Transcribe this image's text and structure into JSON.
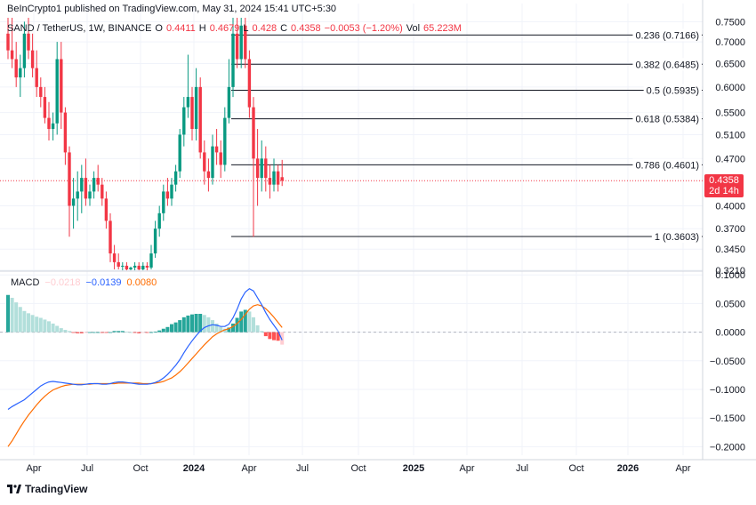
{
  "header": {
    "published": "BeInCrypto1 published on TradingView.com, May 31, 2024 15:41 UTC+5:30",
    "symbol": "SAND / TetherUS, 1W, BINANCE",
    "o_label": "O",
    "o_val": "0.4411",
    "h_label": "H",
    "h_val": "0.4679",
    "l_label": "L",
    "l_val": "0.428",
    "c_label": "C",
    "c_val": "0.4358",
    "change": "−0.0053 (−1.20%)",
    "vol_label": "Vol",
    "vol_val": "65.223M"
  },
  "macd_header": {
    "label": "MACD",
    "hist": "−0.0218",
    "macd": "−0.0139",
    "signal": "0.0080"
  },
  "price_tag": {
    "price": "0.4358",
    "countdown": "2d 14h"
  },
  "footer": {
    "brand": "TradingView"
  },
  "colors": {
    "up": "#089981",
    "down": "#f23645",
    "macd": "#2962ff",
    "signal": "#ff6d00",
    "hist_pos_strong": "#26a69a",
    "hist_pos_weak": "#b2dfdb",
    "hist_neg_strong": "#ff5252",
    "hist_neg_weak": "#ffcdd2"
  },
  "chart_data": {
    "type": "candlestick",
    "price_axis": {
      "ticks": [
        "0.7500",
        "0.7000",
        "0.6500",
        "0.6000",
        "0.5500",
        "0.5100",
        "0.4700",
        "0.4000",
        "0.3700",
        "0.3450",
        "0.3210"
      ],
      "min": 0.321,
      "max": 0.76,
      "scale": "log"
    },
    "time_axis": {
      "labels": [
        "Apr",
        "Jul",
        "Oct",
        "2024",
        "Apr",
        "Jul",
        "Oct",
        "2025",
        "Apr",
        "Jul",
        "Oct",
        "2026",
        "Apr"
      ],
      "bold": [
        "2024",
        "2025",
        "2026"
      ]
    },
    "fibonacci": [
      {
        "label": "0.236 (0.7166)",
        "price": 0.7166
      },
      {
        "label": "0.382 (0.6485)",
        "price": 0.6485
      },
      {
        "label": "0.5 (0.5935)",
        "price": 0.5935
      },
      {
        "label": "0.618 (0.5384)",
        "price": 0.5384
      },
      {
        "label": "0.786 (0.4601)",
        "price": 0.4601
      },
      {
        "label": "1 (0.3603)",
        "price": 0.3603
      }
    ],
    "last_price": 0.4358,
    "candles": [
      [
        0.72,
        0.76,
        0.66,
        0.68
      ],
      [
        0.68,
        0.76,
        0.64,
        0.66
      ],
      [
        0.66,
        0.7,
        0.6,
        0.62
      ],
      [
        0.62,
        0.67,
        0.58,
        0.64
      ],
      [
        0.64,
        0.75,
        0.62,
        0.72
      ],
      [
        0.72,
        0.76,
        0.66,
        0.68
      ],
      [
        0.68,
        0.72,
        0.62,
        0.64
      ],
      [
        0.64,
        0.68,
        0.58,
        0.6
      ],
      [
        0.6,
        0.62,
        0.56,
        0.58
      ],
      [
        0.58,
        0.6,
        0.53,
        0.54
      ],
      [
        0.54,
        0.57,
        0.5,
        0.52
      ],
      [
        0.52,
        0.55,
        0.5,
        0.53
      ],
      [
        0.53,
        0.7,
        0.51,
        0.66
      ],
      [
        0.66,
        0.7,
        0.52,
        0.55
      ],
      [
        0.55,
        0.56,
        0.46,
        0.48
      ],
      [
        0.48,
        0.49,
        0.36,
        0.4
      ],
      [
        0.4,
        0.44,
        0.37,
        0.41
      ],
      [
        0.41,
        0.45,
        0.38,
        0.42
      ],
      [
        0.42,
        0.46,
        0.39,
        0.44
      ],
      [
        0.44,
        0.47,
        0.4,
        0.41
      ],
      [
        0.41,
        0.43,
        0.4,
        0.42
      ],
      [
        0.42,
        0.45,
        0.41,
        0.44
      ],
      [
        0.44,
        0.46,
        0.42,
        0.43
      ],
      [
        0.43,
        0.44,
        0.4,
        0.41
      ],
      [
        0.41,
        0.42,
        0.37,
        0.38
      ],
      [
        0.38,
        0.39,
        0.33,
        0.34
      ],
      [
        0.34,
        0.35,
        0.322,
        0.33
      ],
      [
        0.33,
        0.34,
        0.322,
        0.325
      ],
      [
        0.325,
        0.33,
        0.321,
        0.326
      ],
      [
        0.326,
        0.33,
        0.321,
        0.322
      ],
      [
        0.322,
        0.325,
        0.321,
        0.324
      ],
      [
        0.324,
        0.33,
        0.321,
        0.326
      ],
      [
        0.326,
        0.33,
        0.321,
        0.322
      ],
      [
        0.322,
        0.33,
        0.321,
        0.326
      ],
      [
        0.326,
        0.33,
        0.321,
        0.324
      ],
      [
        0.324,
        0.35,
        0.322,
        0.34
      ],
      [
        0.34,
        0.38,
        0.335,
        0.37
      ],
      [
        0.37,
        0.4,
        0.36,
        0.39
      ],
      [
        0.39,
        0.43,
        0.38,
        0.42
      ],
      [
        0.42,
        0.44,
        0.4,
        0.41
      ],
      [
        0.41,
        0.44,
        0.4,
        0.43
      ],
      [
        0.43,
        0.46,
        0.42,
        0.45
      ],
      [
        0.45,
        0.52,
        0.44,
        0.51
      ],
      [
        0.51,
        0.58,
        0.49,
        0.56
      ],
      [
        0.56,
        0.67,
        0.54,
        0.58
      ],
      [
        0.58,
        0.6,
        0.5,
        0.52
      ],
      [
        0.52,
        0.64,
        0.5,
        0.6
      ],
      [
        0.6,
        0.62,
        0.47,
        0.48
      ],
      [
        0.48,
        0.5,
        0.43,
        0.45
      ],
      [
        0.45,
        0.47,
        0.42,
        0.44
      ],
      [
        0.44,
        0.51,
        0.43,
        0.49
      ],
      [
        0.49,
        0.52,
        0.46,
        0.48
      ],
      [
        0.48,
        0.5,
        0.44,
        0.46
      ],
      [
        0.46,
        0.56,
        0.45,
        0.54
      ],
      [
        0.54,
        0.66,
        0.53,
        0.6
      ],
      [
        0.6,
        0.76,
        0.58,
        0.72
      ],
      [
        0.72,
        0.76,
        0.64,
        0.66
      ],
      [
        0.66,
        0.76,
        0.64,
        0.74
      ],
      [
        0.74,
        0.76,
        0.64,
        0.66
      ],
      [
        0.66,
        0.68,
        0.54,
        0.56
      ],
      [
        0.56,
        0.58,
        0.36,
        0.47
      ],
      [
        0.47,
        0.52,
        0.4,
        0.44
      ],
      [
        0.44,
        0.5,
        0.42,
        0.47
      ],
      [
        0.47,
        0.49,
        0.42,
        0.44
      ],
      [
        0.44,
        0.46,
        0.41,
        0.43
      ],
      [
        0.43,
        0.47,
        0.42,
        0.45
      ],
      [
        0.45,
        0.46,
        0.42,
        0.43
      ],
      [
        0.4411,
        0.4679,
        0.428,
        0.4358
      ]
    ],
    "macd_axis": {
      "ticks": [
        "0.1000",
        "0.0500",
        "0.0000",
        "−0.0500",
        "−0.1000",
        "−0.1500",
        "−0.2000"
      ],
      "min": -0.215,
      "max": 0.105
    },
    "macd_line": [
      -0.135,
      -0.13,
      -0.126,
      -0.122,
      -0.118,
      -0.112,
      -0.106,
      -0.1,
      -0.094,
      -0.09,
      -0.087,
      -0.086,
      -0.087,
      -0.088,
      -0.089,
      -0.09,
      -0.091,
      -0.092,
      -0.092,
      -0.091,
      -0.09,
      -0.09,
      -0.09,
      -0.091,
      -0.091,
      -0.09,
      -0.088,
      -0.087,
      -0.087,
      -0.088,
      -0.089,
      -0.09,
      -0.091,
      -0.091,
      -0.091,
      -0.09,
      -0.088,
      -0.085,
      -0.08,
      -0.074,
      -0.066,
      -0.058,
      -0.048,
      -0.036,
      -0.025,
      -0.015,
      -0.006,
      0.002,
      0.008,
      0.011,
      0.013,
      0.012,
      0.01,
      0.01,
      0.014,
      0.025,
      0.04,
      0.058,
      0.07,
      0.076,
      0.072,
      0.06,
      0.048,
      0.034,
      0.022,
      0.012,
      0.002,
      -0.0139
    ],
    "signal_line": [
      -0.2,
      -0.19,
      -0.178,
      -0.166,
      -0.155,
      -0.145,
      -0.136,
      -0.127,
      -0.119,
      -0.112,
      -0.106,
      -0.101,
      -0.098,
      -0.095,
      -0.093,
      -0.092,
      -0.091,
      -0.091,
      -0.091,
      -0.091,
      -0.091,
      -0.09,
      -0.09,
      -0.09,
      -0.09,
      -0.09,
      -0.09,
      -0.089,
      -0.089,
      -0.089,
      -0.089,
      -0.089,
      -0.089,
      -0.09,
      -0.09,
      -0.09,
      -0.089,
      -0.088,
      -0.086,
      -0.083,
      -0.08,
      -0.075,
      -0.069,
      -0.062,
      -0.054,
      -0.046,
      -0.038,
      -0.03,
      -0.022,
      -0.015,
      -0.008,
      -0.003,
      0.001,
      0.004,
      0.006,
      0.01,
      0.015,
      0.022,
      0.031,
      0.04,
      0.046,
      0.048,
      0.046,
      0.041,
      0.034,
      0.026,
      0.017,
      0.008
    ],
    "histogram": [
      0.065,
      0.06,
      0.052,
      0.044,
      0.037,
      0.033,
      0.03,
      0.027,
      0.025,
      0.022,
      0.019,
      0.015,
      0.011,
      0.007,
      0.004,
      0.002,
      -0.001,
      -0.002,
      -0.002,
      -0.001,
      0.0,
      0.0,
      0.0,
      -0.001,
      -0.001,
      0.0,
      0.002,
      0.002,
      0.002,
      0.001,
      0.0,
      -0.001,
      -0.002,
      -0.001,
      -0.001,
      0.0,
      0.001,
      0.003,
      0.006,
      0.009,
      0.014,
      0.017,
      0.021,
      0.026,
      0.029,
      0.031,
      0.032,
      0.032,
      0.03,
      0.026,
      0.021,
      0.015,
      0.009,
      0.006,
      0.008,
      0.015,
      0.025,
      0.036,
      0.039,
      0.036,
      0.026,
      0.012,
      0.002,
      -0.007,
      -0.012,
      -0.014,
      -0.015,
      -0.0218
    ]
  }
}
